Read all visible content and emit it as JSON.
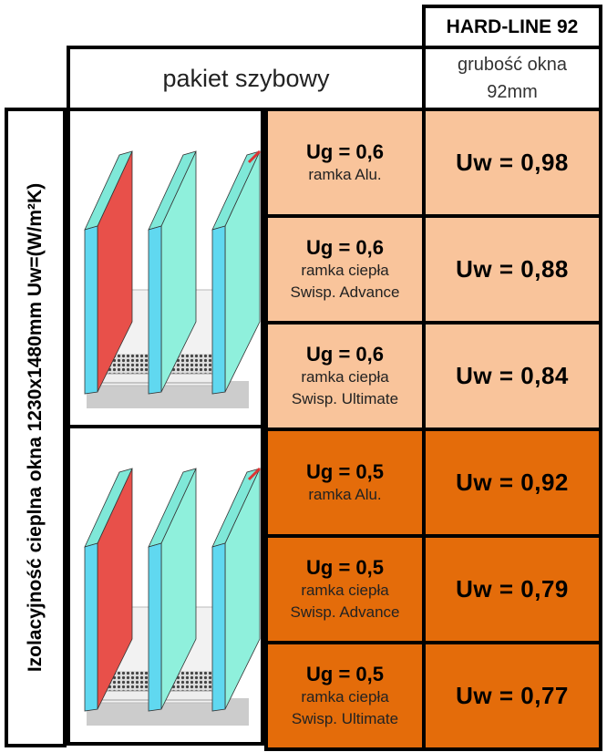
{
  "header": {
    "product": "HARD-LINE 92",
    "column": "pakiet szybowy",
    "thickness": [
      "grubość okna",
      "92mm"
    ]
  },
  "side_label": "Izolacyjność cieplna okna 1230x1480mm Uw=(W/m²K)",
  "rows": [
    {
      "ug": "Ug = 0,6",
      "frame": [
        "ramka Alu."
      ],
      "uw": "Uw = 0,98"
    },
    {
      "ug": "Ug = 0,6",
      "frame": [
        "ramka ciepła",
        "Swisp. Advance"
      ],
      "uw": "Uw = 0,88"
    },
    {
      "ug": "Ug = 0,6",
      "frame": [
        "ramka ciepła",
        "Swisp. Ultimate"
      ],
      "uw": "Uw = 0,84"
    },
    {
      "ug": "Ug = 0,5",
      "frame": [
        "ramka Alu."
      ],
      "uw": "Uw = 0,92"
    },
    {
      "ug": "Ug = 0,5",
      "frame": [
        "ramka ciepła",
        "Swisp. Advance"
      ],
      "uw": "Uw = 0,79"
    },
    {
      "ug": "Ug = 0,5",
      "frame": [
        "ramka ciepła",
        "Swisp. Ultimate"
      ],
      "uw": "Uw = 0,77"
    }
  ]
}
